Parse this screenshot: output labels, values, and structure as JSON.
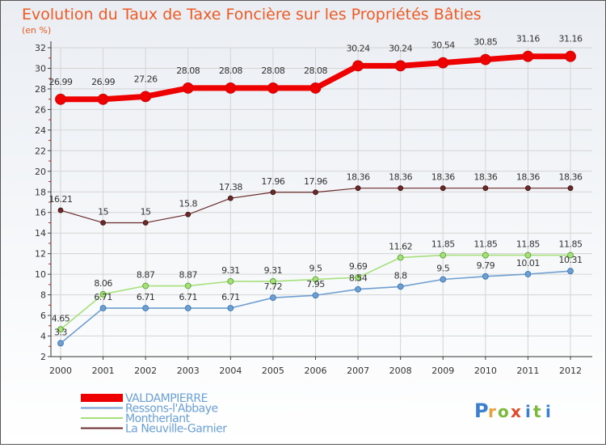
{
  "chart_data": {
    "type": "line",
    "title": "Evolution du Taux de Taxe Foncière sur les Propriétés Bâties",
    "subtitle": "(en %)",
    "xlabel": "",
    "ylabel": "",
    "ylim": [
      2,
      32
    ],
    "yticks": [
      2,
      4,
      6,
      8,
      10,
      12,
      14,
      16,
      18,
      20,
      22,
      24,
      26,
      28,
      30,
      32
    ],
    "grid": true,
    "legend_position": "bottom-left",
    "categories": [
      "2000",
      "2001",
      "2002",
      "2003",
      "2004",
      "2005",
      "2006",
      "2007",
      "2008",
      "2009",
      "2010",
      "2011",
      "2012"
    ],
    "series": [
      {
        "name": "VALDAMPIERRE",
        "color": "#ee0000",
        "values": [
          26.99,
          26.99,
          27.26,
          28.08,
          28.08,
          28.08,
          28.08,
          30.24,
          30.24,
          30.54,
          30.85,
          31.16,
          31.16
        ],
        "labels": [
          "26.99",
          "26.99",
          "27.26",
          "28.08",
          "28.08",
          "28.08",
          "28.08",
          "30.24",
          "30.24",
          "30.54",
          "30.85",
          "31.16",
          "31.16"
        ]
      },
      {
        "name": "Ressons-l'Abbaye",
        "color": "#6f9fd0",
        "values": [
          3.3,
          6.71,
          6.71,
          6.71,
          6.71,
          7.72,
          7.95,
          8.54,
          8.8,
          9.5,
          9.79,
          10.01,
          10.31
        ],
        "labels": [
          "3.3",
          "6.71",
          "6.71",
          "6.71",
          "6.71",
          "7.72",
          "7.95",
          "8.54",
          "8.8",
          "9.5",
          "9.79",
          "10.01",
          "10.31"
        ]
      },
      {
        "name": "Montherlant",
        "color": "#a6e07a",
        "values": [
          4.65,
          8.06,
          8.87,
          8.87,
          9.31,
          9.31,
          9.5,
          9.69,
          11.62,
          11.85,
          11.85,
          11.85,
          11.85
        ],
        "labels": [
          "4.65",
          "8.06",
          "8.87",
          "8.87",
          "9.31",
          "9.31",
          "9.5",
          "9.69",
          "11.62",
          "11.85",
          "11.85",
          "11.85",
          "11.85"
        ]
      },
      {
        "name": "La Neuville-Garnier",
        "color": "#6a2a2a",
        "values": [
          16.21,
          15,
          15,
          15.8,
          17.38,
          17.96,
          17.96,
          18.36,
          18.36,
          18.36,
          18.36,
          18.36,
          18.36
        ],
        "labels": [
          "16.21",
          "15",
          "15",
          "15.8",
          "17.38",
          "17.96",
          "17.96",
          "18.36",
          "18.36",
          "18.36",
          "18.36",
          "18.36",
          "18.36"
        ]
      }
    ]
  },
  "branding": {
    "logo_text": "Proxiti",
    "logo_letters": [
      "P",
      "r",
      "o",
      "x",
      "i",
      "t",
      "i"
    ],
    "logo_colors": [
      "#3b7fd0",
      "#e8a23a",
      "#7ab93a",
      "#e04a2a",
      "#3b7fd0",
      "#7ab93a",
      "#3b7fd0"
    ]
  }
}
